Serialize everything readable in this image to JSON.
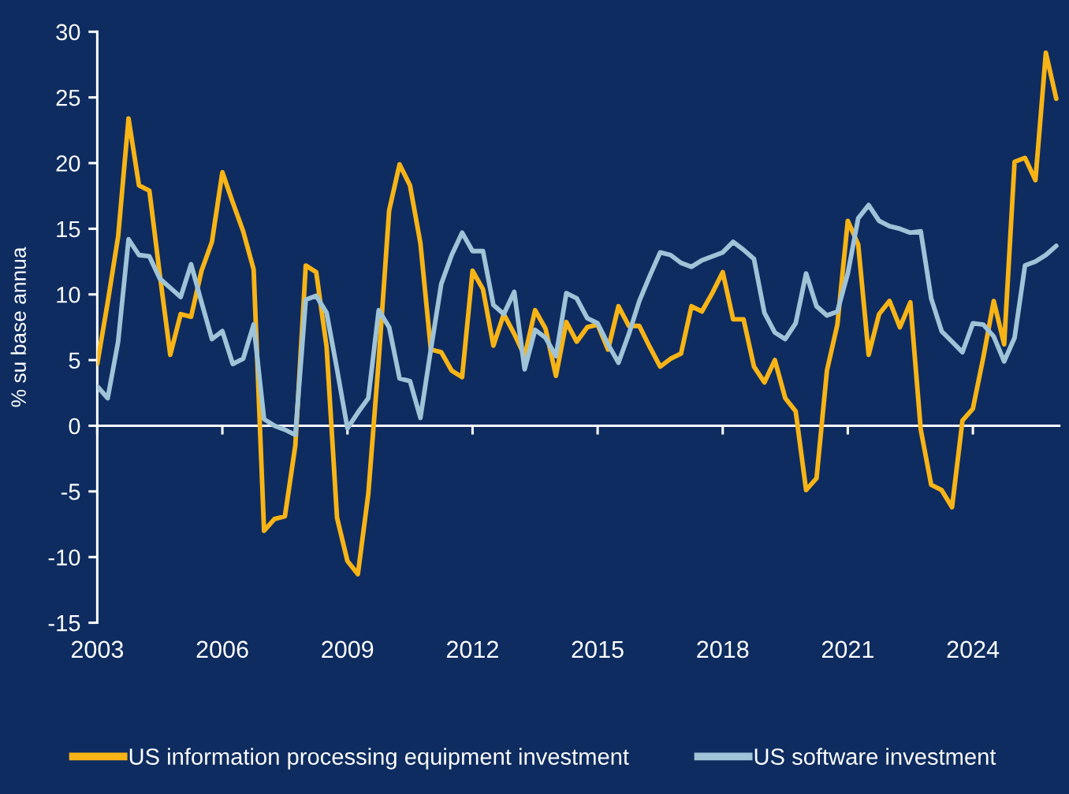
{
  "chart_data": {
    "type": "line",
    "ylabel": "% su base annua",
    "x": [
      2003,
      2003.25,
      2003.5,
      2003.75,
      2004,
      2004.25,
      2004.5,
      2004.75,
      2005,
      2005.25,
      2005.5,
      2005.75,
      2006,
      2006.25,
      2006.5,
      2006.75,
      2007,
      2007.25,
      2007.5,
      2007.75,
      2008,
      2008.25,
      2008.5,
      2008.75,
      2009,
      2009.25,
      2009.5,
      2009.75,
      2010,
      2010.25,
      2010.5,
      2010.75,
      2011,
      2011.25,
      2011.5,
      2011.75,
      2012,
      2012.25,
      2012.5,
      2012.75,
      2013,
      2013.25,
      2013.5,
      2013.75,
      2014,
      2014.25,
      2014.5,
      2014.75,
      2015,
      2015.25,
      2015.5,
      2015.75,
      2016,
      2016.25,
      2016.5,
      2016.75,
      2017,
      2017.25,
      2017.5,
      2017.75,
      2018,
      2018.25,
      2018.5,
      2018.75,
      2019,
      2019.25,
      2019.5,
      2019.75,
      2020,
      2020.25,
      2020.5,
      2020.75,
      2021,
      2021.25,
      2021.5,
      2021.75,
      2022,
      2022.25,
      2022.5,
      2022.75,
      2023,
      2023.25,
      2023.5,
      2023.75,
      2024,
      2024.25,
      2024.5,
      2024.75,
      2025,
      2025.25,
      2025.5,
      2025.75,
      2026
    ],
    "xlim": [
      2003,
      2026.1
    ],
    "xticks": [
      2003,
      2006,
      2009,
      2012,
      2015,
      2018,
      2021,
      2024
    ],
    "ylim": [
      -15,
      30
    ],
    "yticks": [
      -15,
      -10,
      -5,
      0,
      5,
      10,
      15,
      20,
      25,
      30
    ],
    "ref_lines": [
      {
        "axis": "y",
        "value": 0,
        "color": "#ffffff"
      }
    ],
    "grid": false,
    "legend": "bottom",
    "series": [
      {
        "name": "US information processing equipment investment",
        "color": "#f7b416",
        "values": [
          4.7,
          9.4,
          14.4,
          23.4,
          18.3,
          17.9,
          11.5,
          5.4,
          8.5,
          8.3,
          11.8,
          14.0,
          19.3,
          17.0,
          14.8,
          11.9,
          -8.0,
          -7.1,
          -6.9,
          -1.5,
          12.2,
          11.7,
          6.0,
          -7.0,
          -10.3,
          -11.3,
          -5.2,
          5.0,
          16.4,
          19.9,
          18.3,
          13.9,
          5.8,
          5.6,
          4.2,
          3.7,
          11.8,
          10.4,
          6.1,
          8.5,
          7.0,
          5.3,
          8.8,
          7.4,
          3.8,
          7.9,
          6.4,
          7.5,
          7.7,
          5.8,
          9.1,
          7.6,
          7.6,
          6.0,
          4.5,
          5.1,
          5.5,
          9.1,
          8.7,
          10.1,
          11.7,
          8.1,
          8.1,
          4.5,
          3.3,
          5.0,
          2.1,
          1.1,
          -4.9,
          -4.0,
          4.2,
          7.7,
          15.6,
          13.8,
          5.4,
          8.5,
          9.5,
          7.5,
          9.4,
          -0.3,
          -4.5,
          -4.9,
          -6.2,
          0.4,
          1.3,
          5.2,
          9.5,
          6.2,
          20.1,
          20.4,
          18.7,
          28.4,
          24.9
        ]
      },
      {
        "name": "US software investment",
        "color": "#9fc3d7",
        "values": [
          3.0,
          2.1,
          6.4,
          14.2,
          13.0,
          12.9,
          11.2,
          10.5,
          9.8,
          12.3,
          9.4,
          6.6,
          7.2,
          4.7,
          5.1,
          7.7,
          0.5,
          0.0,
          -0.3,
          -0.7,
          9.6,
          9.9,
          8.6,
          4.3,
          -0.2,
          1.0,
          2.1,
          8.8,
          7.5,
          3.6,
          3.4,
          0.6,
          5.8,
          10.8,
          13.0,
          14.7,
          13.3,
          13.3,
          9.2,
          8.5,
          10.2,
          4.3,
          7.3,
          6.7,
          5.3,
          10.1,
          9.7,
          8.2,
          7.8,
          6.2,
          4.8,
          7.0,
          9.5,
          11.4,
          13.2,
          13.0,
          12.4,
          12.1,
          12.6,
          12.9,
          13.2,
          14.0,
          13.4,
          12.7,
          8.6,
          7.1,
          6.6,
          7.8,
          11.6,
          9.1,
          8.4,
          8.7,
          11.6,
          15.8,
          16.8,
          15.6,
          15.2,
          15.0,
          14.7,
          14.8,
          9.7,
          7.2,
          6.4,
          5.6,
          7.8,
          7.7,
          6.8,
          4.9,
          6.7,
          12.2,
          12.5,
          13.0,
          13.7
        ]
      }
    ]
  }
}
